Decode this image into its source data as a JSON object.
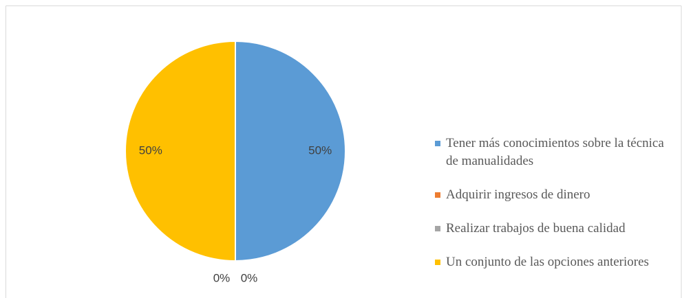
{
  "chart_data": {
    "type": "pie",
    "categories": [
      "Tener más conocimientos sobre la técnica de manualidades",
      "Adquirir ingresos de dinero",
      "Realizar trabajos de buena calidad",
      "Un conjunto de las opciones anteriores"
    ],
    "values": [
      50,
      0,
      0,
      50
    ],
    "value_labels": [
      "50%",
      "0%",
      "0%",
      "50%"
    ],
    "colors": [
      "#5b9bd5",
      "#ed7d31",
      "#a5a5a5",
      "#ffc000"
    ],
    "legend": "right"
  }
}
